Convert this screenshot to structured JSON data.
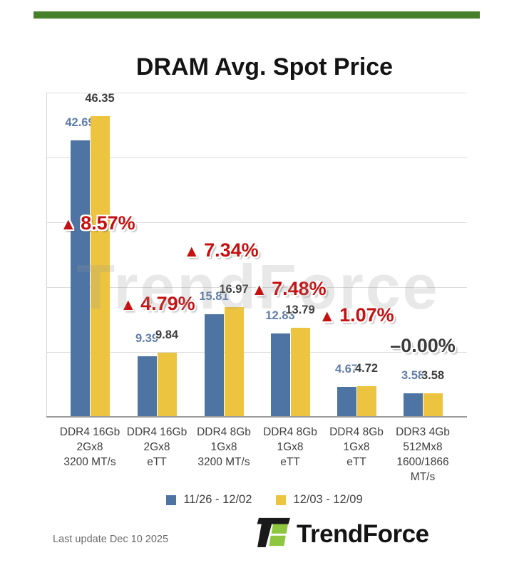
{
  "header": {
    "title": "DRAM Avg. Spot Price"
  },
  "chart_data": {
    "type": "bar",
    "title": "DRAM Avg. Spot Price",
    "categories": [
      [
        "DDR4 16Gb",
        "2Gx8",
        "3200 MT/s"
      ],
      [
        "DDR4 16Gb",
        "2Gx8",
        "eTT"
      ],
      [
        "DDR4 8Gb",
        "1Gx8",
        "3200 MT/s"
      ],
      [
        "DDR4 8Gb",
        "1Gx8",
        "eTT"
      ],
      [
        "DDR4 8Gb",
        "1Gx8",
        "eTT"
      ],
      [
        "DDR3 4Gb",
        "512Mx8",
        "1600/1866",
        "MT/s"
      ]
    ],
    "series": [
      {
        "name": "11/26 - 12/02",
        "color": "#4d74a3",
        "label_color": "#5f7ca6",
        "values": [
          42.69,
          9.39,
          15.81,
          12.83,
          4.67,
          3.58
        ]
      },
      {
        "name": "12/03 - 12/09",
        "color": "#edc440",
        "label_color": "#3d3d3d",
        "values": [
          46.35,
          9.84,
          16.97,
          13.79,
          4.72,
          3.58
        ]
      }
    ],
    "changes": [
      {
        "value": "8.57%",
        "direction": "up"
      },
      {
        "value": "4.79%",
        "direction": "up"
      },
      {
        "value": "7.34%",
        "direction": "up"
      },
      {
        "value": "7.48%",
        "direction": "up"
      },
      {
        "value": "1.07%",
        "direction": "up"
      },
      {
        "value": "0.00%",
        "direction": "flat"
      }
    ],
    "ylim": [
      0,
      50
    ],
    "grid": true,
    "gridline_step": 10,
    "legend_position": "bottom",
    "watermark": "TrendForce"
  },
  "glyphs": {
    "up_triangle": "▲",
    "flat_dash": "–"
  },
  "colors": {
    "accent_green": "#47802b",
    "bar_blue": "#4d74a3",
    "bar_yellow": "#edc440",
    "change_up_red": "#c51111",
    "change_flat_grey": "#3b3b3b",
    "logo_green": "#8dc63f",
    "logo_black": "#1a1a1a"
  },
  "footer": {
    "last_update": "Last update Dec 10 2025",
    "brand": "TrendForce"
  }
}
